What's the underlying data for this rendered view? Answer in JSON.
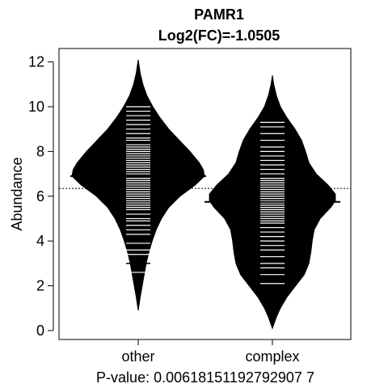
{
  "chart_data": {
    "type": "beanplot",
    "title": "PAMR1",
    "subtitle": "Log2(FC)=-1.0505",
    "xlabel": "P-value: 0.00618151192792907 7",
    "ylabel": "Abundance",
    "categories": [
      "other",
      "complex"
    ],
    "ylim": [
      -0.4,
      12.6
    ],
    "y_ticks": [
      0,
      2,
      4,
      6,
      8,
      10,
      12
    ],
    "grid": false,
    "overall_mean": 6.35,
    "beans": [
      {
        "name": "other",
        "mean": 6.9,
        "median_mark": 3.0,
        "range": [
          0.9,
          12.1
        ],
        "density": [
          [
            0.9,
            0.0
          ],
          [
            1.5,
            0.03
          ],
          [
            2.0,
            0.06
          ],
          [
            2.5,
            0.09
          ],
          [
            3.0,
            0.12
          ],
          [
            3.5,
            0.16
          ],
          [
            4.0,
            0.21
          ],
          [
            4.5,
            0.27
          ],
          [
            5.0,
            0.35
          ],
          [
            5.5,
            0.46
          ],
          [
            6.0,
            0.63
          ],
          [
            6.5,
            0.86
          ],
          [
            6.9,
            1.0
          ],
          [
            7.2,
            0.98
          ],
          [
            7.5,
            0.92
          ],
          [
            8.0,
            0.78
          ],
          [
            8.5,
            0.62
          ],
          [
            9.0,
            0.46
          ],
          [
            9.5,
            0.33
          ],
          [
            10.0,
            0.22
          ],
          [
            10.5,
            0.13
          ],
          [
            11.0,
            0.07
          ],
          [
            11.5,
            0.03
          ],
          [
            12.1,
            0.0
          ]
        ],
        "obs": [
          2.6,
          3.4,
          3.6,
          3.9,
          4.3,
          4.5,
          4.7,
          4.9,
          5.0,
          5.2,
          5.4,
          5.5,
          5.6,
          5.7,
          5.8,
          5.9,
          6.0,
          6.1,
          6.2,
          6.3,
          6.4,
          6.5,
          6.6,
          6.7,
          6.8,
          6.9,
          7.0,
          7.1,
          7.2,
          7.3,
          7.4,
          7.5,
          7.6,
          7.7,
          7.8,
          7.9,
          8.0,
          8.1,
          8.2,
          8.3,
          8.5,
          8.6,
          8.8,
          9.0,
          9.2,
          9.4,
          9.6,
          9.8,
          10.0
        ]
      },
      {
        "name": "complex",
        "mean": 5.75,
        "median_mark": null,
        "range": [
          0.1,
          11.4
        ],
        "density": [
          [
            0.1,
            0.0
          ],
          [
            0.6,
            0.06
          ],
          [
            1.0,
            0.12
          ],
          [
            1.5,
            0.22
          ],
          [
            2.0,
            0.35
          ],
          [
            2.5,
            0.48
          ],
          [
            3.0,
            0.55
          ],
          [
            3.5,
            0.58
          ],
          [
            4.0,
            0.6
          ],
          [
            4.5,
            0.63
          ],
          [
            5.0,
            0.72
          ],
          [
            5.5,
            0.88
          ],
          [
            5.8,
            0.95
          ],
          [
            6.1,
            0.95
          ],
          [
            6.5,
            0.84
          ],
          [
            7.0,
            0.66
          ],
          [
            7.5,
            0.55
          ],
          [
            8.0,
            0.5
          ],
          [
            8.5,
            0.44
          ],
          [
            9.0,
            0.34
          ],
          [
            9.5,
            0.22
          ],
          [
            10.0,
            0.12
          ],
          [
            10.5,
            0.06
          ],
          [
            11.0,
            0.02
          ],
          [
            11.4,
            0.0
          ]
        ],
        "obs": [
          2.1,
          2.5,
          2.8,
          3.0,
          3.3,
          3.6,
          3.8,
          4.0,
          4.2,
          4.4,
          4.6,
          4.8,
          4.9,
          5.0,
          5.1,
          5.2,
          5.3,
          5.4,
          5.5,
          5.6,
          5.7,
          5.8,
          5.9,
          6.0,
          6.1,
          6.2,
          6.3,
          6.4,
          6.5,
          6.6,
          6.7,
          6.8,
          7.0,
          7.2,
          7.4,
          7.6,
          7.8,
          8.0,
          8.2,
          8.5,
          8.8,
          9.1,
          9.3
        ]
      }
    ]
  }
}
